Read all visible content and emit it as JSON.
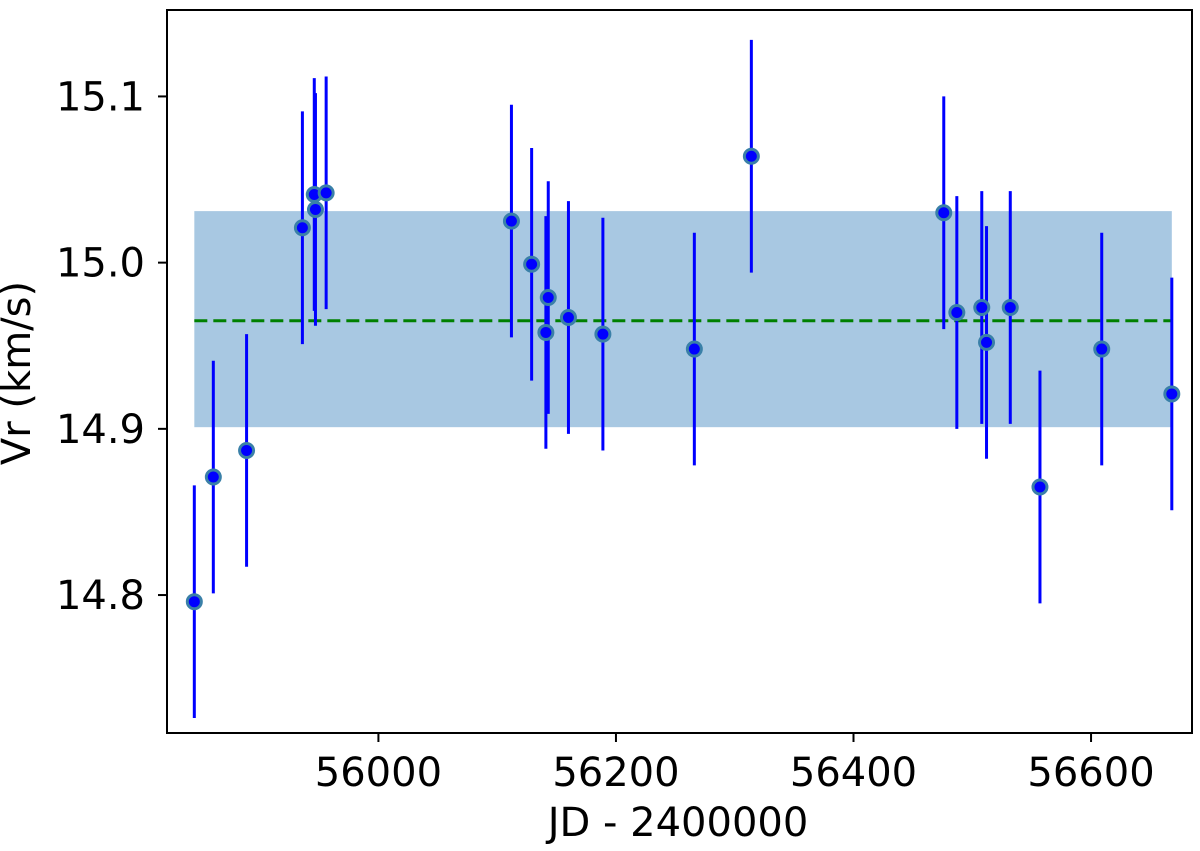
{
  "chart_data": {
    "type": "scatter",
    "xlabel": "JD - 2400000",
    "ylabel": "Vr (km/s)",
    "xlim": [
      55822,
      56685
    ],
    "ylim": [
      14.717,
      15.152
    ],
    "xticks": [
      56000,
      56200,
      56400,
      56600
    ],
    "xtick_labels": [
      "56000",
      "56200",
      "56400",
      "56600"
    ],
    "yticks": [
      14.8,
      14.9,
      15.0,
      15.1
    ],
    "ytick_labels": [
      "14.8",
      "14.9",
      "15.0",
      "15.1"
    ],
    "grid": false,
    "mean_line": {
      "value": 14.965,
      "style": "dashed",
      "color": "#008000"
    },
    "band": {
      "x_range": [
        55845,
        56668
      ],
      "y_range": [
        14.901,
        15.031
      ],
      "color": "#a8c8e2"
    },
    "marker_color": "#0000ff",
    "marker_edge_color": "#3a80a8",
    "errorbar_color": "#0000ff",
    "points": [
      {
        "x": 55845,
        "y": 14.796,
        "err": 0.07
      },
      {
        "x": 55861,
        "y": 14.871,
        "err": 0.07
      },
      {
        "x": 55889,
        "y": 14.887,
        "err": 0.07
      },
      {
        "x": 55936,
        "y": 15.021,
        "err": 0.07
      },
      {
        "x": 55946,
        "y": 15.041,
        "err": 0.07
      },
      {
        "x": 55947,
        "y": 15.032,
        "err": 0.07
      },
      {
        "x": 55956,
        "y": 15.042,
        "err": 0.07
      },
      {
        "x": 56112,
        "y": 15.025,
        "err": 0.07
      },
      {
        "x": 56129,
        "y": 14.999,
        "err": 0.07
      },
      {
        "x": 56141,
        "y": 14.958,
        "err": 0.07
      },
      {
        "x": 56143,
        "y": 14.979,
        "err": 0.07
      },
      {
        "x": 56160,
        "y": 14.967,
        "err": 0.07
      },
      {
        "x": 56189,
        "y": 14.957,
        "err": 0.07
      },
      {
        "x": 56266,
        "y": 14.948,
        "err": 0.07
      },
      {
        "x": 56314,
        "y": 15.064,
        "err": 0.07
      },
      {
        "x": 56476,
        "y": 15.03,
        "err": 0.07
      },
      {
        "x": 56487,
        "y": 14.97,
        "err": 0.07
      },
      {
        "x": 56508,
        "y": 14.973,
        "err": 0.07
      },
      {
        "x": 56512,
        "y": 14.952,
        "err": 0.07
      },
      {
        "x": 56532,
        "y": 14.973,
        "err": 0.07
      },
      {
        "x": 56557,
        "y": 14.865,
        "err": 0.07
      },
      {
        "x": 56609,
        "y": 14.948,
        "err": 0.07
      },
      {
        "x": 56668,
        "y": 14.921,
        "err": 0.07
      }
    ]
  }
}
